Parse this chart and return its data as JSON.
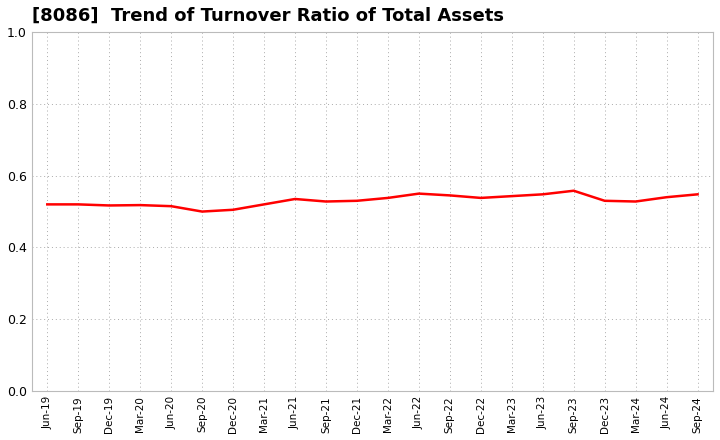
{
  "title": "[8086]  Trend of Turnover Ratio of Total Assets",
  "title_fontsize": 13,
  "line_color": "#FF0000",
  "line_width": 1.8,
  "background_color": "#FFFFFF",
  "grid_color": "#AAAAAA",
  "ylim": [
    0.0,
    1.0
  ],
  "yticks": [
    0.0,
    0.2,
    0.4,
    0.6,
    0.8,
    1.0
  ],
  "x_labels": [
    "Jun-19",
    "Sep-19",
    "Dec-19",
    "Mar-20",
    "Jun-20",
    "Sep-20",
    "Dec-20",
    "Mar-21",
    "Jun-21",
    "Sep-21",
    "Dec-21",
    "Mar-22",
    "Jun-22",
    "Sep-22",
    "Dec-22",
    "Mar-23",
    "Jun-23",
    "Sep-23",
    "Dec-23",
    "Mar-24",
    "Jun-24",
    "Sep-24"
  ],
  "values": [
    0.52,
    0.52,
    0.517,
    0.518,
    0.515,
    0.5,
    0.505,
    0.52,
    0.535,
    0.528,
    0.53,
    0.538,
    0.55,
    0.545,
    0.538,
    0.543,
    0.548,
    0.558,
    0.53,
    0.528,
    0.54,
    0.548
  ]
}
